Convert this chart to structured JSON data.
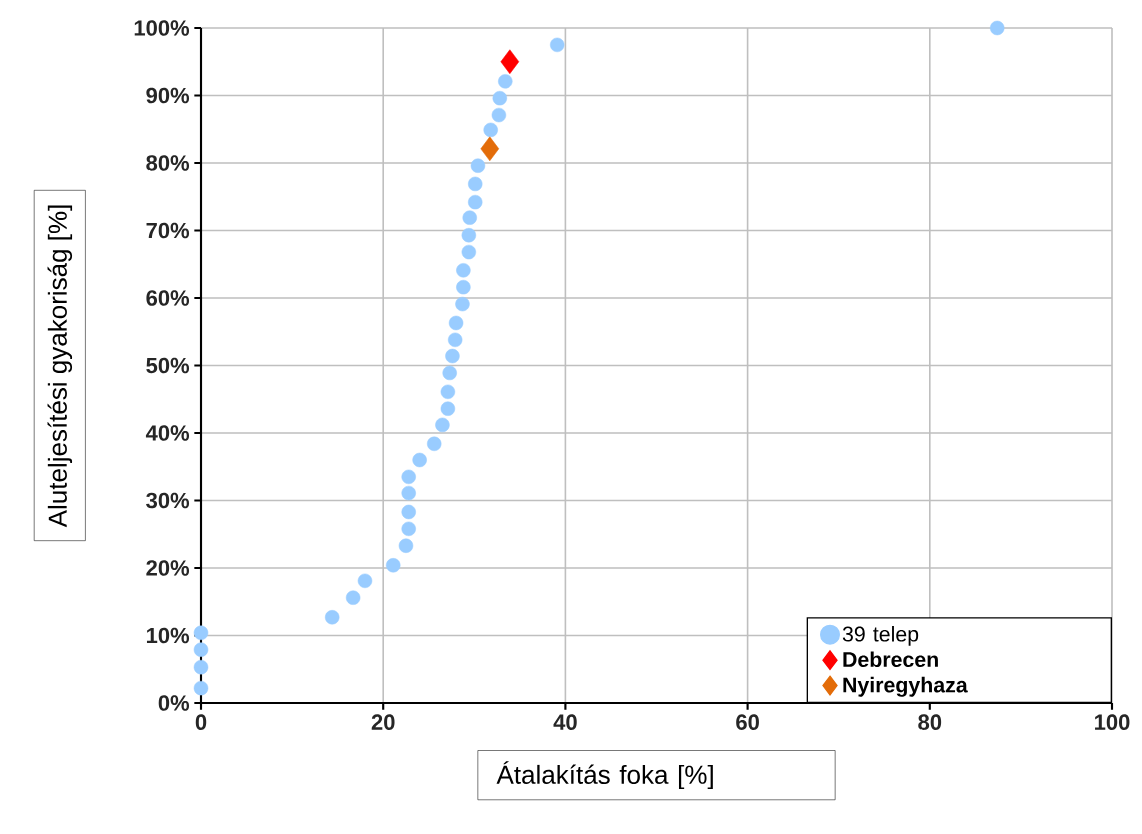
{
  "chart_data": {
    "type": "scatter",
    "xlabel": "Átalakítás foka [%]",
    "ylabel": "Aluteljesítési gyakoriság [%]",
    "xlim": [
      0,
      100
    ],
    "ylim": [
      0,
      100
    ],
    "xticks": [
      0,
      20,
      40,
      60,
      80,
      100
    ],
    "yticks": [
      {
        "value": 0,
        "label": "0%"
      },
      {
        "value": 10,
        "label": "10%"
      },
      {
        "value": 20,
        "label": "20%"
      },
      {
        "value": 30,
        "label": "30%"
      },
      {
        "value": 40,
        "label": "40%"
      },
      {
        "value": 50,
        "label": "50%"
      },
      {
        "value": 60,
        "label": "60%"
      },
      {
        "value": 70,
        "label": "70%"
      },
      {
        "value": 80,
        "label": "80%"
      },
      {
        "value": 90,
        "label": "90%"
      },
      {
        "value": 100,
        "label": "100%"
      }
    ],
    "grid": true,
    "legend": "bottom right",
    "series": [
      {
        "name": "39 telep",
        "color": "#99ccff",
        "marker": "circle",
        "x": [
          0,
          0,
          0,
          0,
          14.4,
          16.7,
          18.0,
          21.1,
          22.5,
          22.8,
          22.8,
          22.8,
          22.8,
          24.0,
          25.6,
          26.5,
          27.1,
          27.1,
          27.3,
          27.6,
          27.9,
          28.0,
          28.7,
          28.8,
          28.8,
          29.4,
          29.4,
          29.5,
          30.1,
          30.1,
          30.4,
          31.8,
          32.7,
          32.8,
          33.4,
          39.1,
          87.4
        ],
        "values": [
          2.2,
          5.3,
          7.9,
          10.4,
          12.7,
          15.6,
          18.1,
          20.4,
          23.3,
          25.8,
          28.3,
          31.1,
          33.5,
          36.0,
          38.4,
          41.2,
          43.6,
          46.1,
          48.9,
          51.4,
          53.8,
          56.3,
          59.1,
          61.6,
          64.1,
          66.8,
          69.3,
          71.9,
          74.2,
          76.9,
          79.6,
          84.9,
          87.1,
          89.6,
          92.1,
          97.5,
          100
        ]
      },
      {
        "name": "Debrecen",
        "color": "#ff0000",
        "marker": "diamond",
        "x": [
          33.9
        ],
        "values": [
          95.0
        ]
      },
      {
        "name": "Nyiregyhaza",
        "color": "#e36c09",
        "marker": "diamond",
        "x": [
          31.7
        ],
        "values": [
          82.1
        ]
      }
    ]
  }
}
